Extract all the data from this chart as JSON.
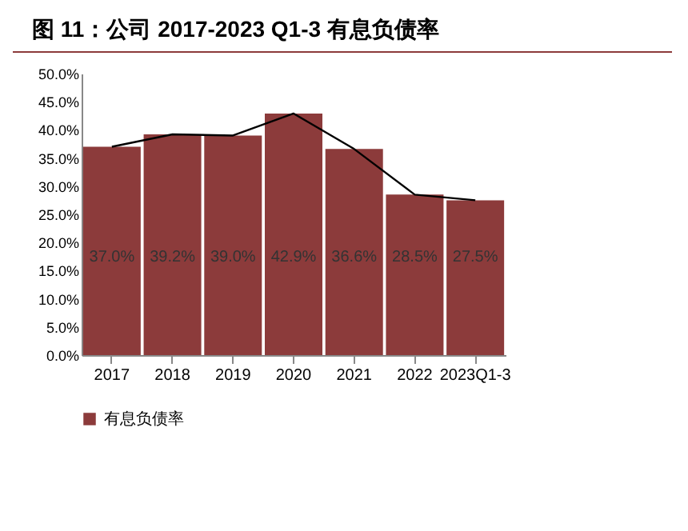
{
  "chart_data": {
    "type": "bar",
    "title": "图 11：公司 2017-2023 Q1-3 有息负债率",
    "categories": [
      "2017",
      "2018",
      "2019",
      "2020",
      "2021",
      "2022",
      "2023Q1-3"
    ],
    "series": [
      {
        "name": "有息负债率",
        "color": "#8c3b3b",
        "values": [
          37.0,
          39.2,
          39.0,
          42.9,
          36.6,
          28.5,
          27.5
        ],
        "value_labels": [
          "37.0%",
          "39.2%",
          "39.0%",
          "42.9%",
          "36.6%",
          "28.5%",
          "27.5%"
        ]
      },
      {
        "type": "line",
        "color": "#000000",
        "values": [
          37.0,
          39.2,
          39.0,
          42.9,
          36.6,
          28.5,
          27.5
        ]
      }
    ],
    "ylim": [
      0,
      50
    ],
    "yticks": [
      {
        "value": 0,
        "label": "0.0%"
      },
      {
        "value": 5,
        "label": "5.0%"
      },
      {
        "value": 10,
        "label": "10.0%"
      },
      {
        "value": 15,
        "label": "15.0%"
      },
      {
        "value": 20,
        "label": "20.0%"
      },
      {
        "value": 25,
        "label": "25.0%"
      },
      {
        "value": 30,
        "label": "30.0%"
      },
      {
        "value": 35,
        "label": "35.0%"
      },
      {
        "value": 40,
        "label": "40.0%"
      },
      {
        "value": 45,
        "label": "45.0%"
      },
      {
        "value": 50,
        "label": "50.0%"
      }
    ],
    "legend": "bottom"
  }
}
